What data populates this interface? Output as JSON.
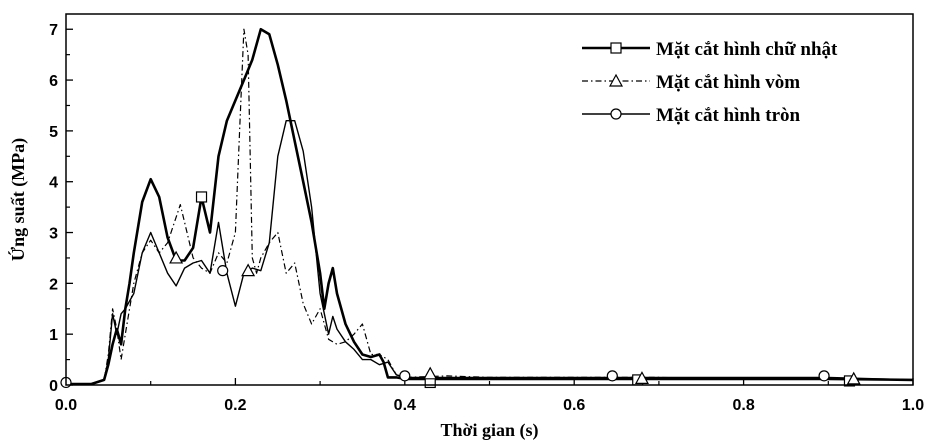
{
  "chart_data": {
    "type": "line",
    "xlabel": "Thời gian (s)",
    "ylabel": "Ứng suất (MPa)",
    "xlim": [
      0.0,
      1.0
    ],
    "ylim": [
      0,
      7.3
    ],
    "x_ticks": [
      "0.0",
      "0.2",
      "0.4",
      "0.6",
      "0.8",
      "1.0"
    ],
    "x_tick_values": [
      0.0,
      0.2,
      0.4,
      0.6,
      0.8,
      1.0
    ],
    "y_ticks": [
      "0",
      "1",
      "2",
      "3",
      "4",
      "5",
      "6",
      "7"
    ],
    "y_tick_values": [
      0,
      1,
      2,
      3,
      4,
      5,
      6,
      7
    ],
    "grid": false,
    "legend_position": "top-right",
    "series": [
      {
        "name": "Mặt cắt hình chữ nhật",
        "line_style": "solid-thick",
        "marker": "square",
        "color": "#000000",
        "x": [
          0.0,
          0.03,
          0.045,
          0.05,
          0.055,
          0.06,
          0.065,
          0.07,
          0.075,
          0.08,
          0.09,
          0.1,
          0.11,
          0.12,
          0.13,
          0.14,
          0.15,
          0.16,
          0.17,
          0.18,
          0.19,
          0.2,
          0.21,
          0.22,
          0.23,
          0.24,
          0.25,
          0.26,
          0.27,
          0.28,
          0.29,
          0.3,
          0.305,
          0.31,
          0.315,
          0.32,
          0.33,
          0.34,
          0.35,
          0.36,
          0.37,
          0.375,
          0.38,
          0.39,
          0.4,
          0.45,
          0.5,
          0.6,
          0.7,
          0.8,
          0.9,
          1.0
        ],
        "y": [
          0.02,
          0.02,
          0.1,
          0.4,
          0.8,
          1.1,
          0.8,
          1.5,
          2.0,
          2.6,
          3.6,
          4.05,
          3.7,
          2.9,
          2.45,
          2.45,
          2.7,
          3.7,
          3.0,
          4.5,
          5.2,
          5.6,
          6.0,
          6.4,
          7.0,
          6.9,
          6.3,
          5.6,
          4.8,
          4.0,
          3.2,
          2.2,
          1.5,
          2.0,
          2.3,
          1.8,
          1.2,
          0.85,
          0.6,
          0.55,
          0.6,
          0.45,
          0.15,
          0.15,
          0.12,
          0.12,
          0.12,
          0.12,
          0.12,
          0.12,
          0.12,
          0.1
        ]
      },
      {
        "name": "Mặt cắt hình vòm",
        "line_style": "dash-dot",
        "marker": "triangle",
        "color": "#000000",
        "x": [
          0.0,
          0.03,
          0.045,
          0.05,
          0.055,
          0.06,
          0.065,
          0.07,
          0.08,
          0.09,
          0.1,
          0.11,
          0.12,
          0.13,
          0.135,
          0.14,
          0.15,
          0.16,
          0.17,
          0.18,
          0.19,
          0.2,
          0.205,
          0.21,
          0.215,
          0.22,
          0.225,
          0.23,
          0.24,
          0.25,
          0.26,
          0.27,
          0.28,
          0.29,
          0.3,
          0.31,
          0.32,
          0.33,
          0.34,
          0.35,
          0.36,
          0.37,
          0.38,
          0.39,
          0.4,
          0.45,
          0.5,
          0.6,
          0.7,
          0.8,
          0.9,
          1.0
        ],
        "y": [
          0.02,
          0.02,
          0.1,
          0.6,
          1.5,
          1.1,
          0.5,
          1.0,
          2.0,
          2.6,
          2.85,
          2.6,
          2.8,
          3.3,
          3.55,
          3.2,
          2.5,
          2.3,
          2.2,
          2.6,
          2.4,
          3.0,
          5.0,
          7.0,
          6.5,
          2.5,
          2.2,
          2.5,
          2.8,
          3.0,
          2.2,
          2.4,
          1.6,
          1.2,
          1.5,
          0.9,
          0.8,
          0.85,
          1.0,
          1.2,
          0.6,
          0.6,
          0.5,
          0.2,
          0.15,
          0.18,
          0.15,
          0.15,
          0.15,
          0.12,
          0.12,
          0.1
        ]
      },
      {
        "name": "Mặt cắt hình tròn",
        "line_style": "solid-thin",
        "marker": "circle",
        "color": "#000000",
        "x": [
          0.0,
          0.03,
          0.045,
          0.05,
          0.055,
          0.06,
          0.065,
          0.07,
          0.08,
          0.09,
          0.1,
          0.11,
          0.12,
          0.13,
          0.14,
          0.15,
          0.16,
          0.17,
          0.18,
          0.19,
          0.2,
          0.21,
          0.22,
          0.23,
          0.24,
          0.25,
          0.26,
          0.27,
          0.28,
          0.29,
          0.3,
          0.31,
          0.315,
          0.32,
          0.33,
          0.34,
          0.35,
          0.36,
          0.37,
          0.38,
          0.39,
          0.4,
          0.5,
          0.6,
          0.7,
          0.8,
          0.9,
          1.0
        ],
        "y": [
          0.02,
          0.02,
          0.1,
          0.5,
          1.4,
          1.0,
          1.4,
          1.5,
          1.8,
          2.6,
          3.0,
          2.6,
          2.2,
          1.95,
          2.3,
          2.4,
          2.45,
          2.2,
          3.2,
          2.2,
          1.55,
          2.2,
          2.3,
          2.25,
          2.8,
          4.5,
          5.2,
          5.2,
          4.6,
          3.5,
          1.8,
          1.0,
          1.35,
          1.1,
          0.85,
          0.7,
          0.5,
          0.5,
          0.4,
          0.45,
          0.2,
          0.15,
          0.15,
          0.15,
          0.15,
          0.15,
          0.15,
          0.1
        ]
      }
    ],
    "markers": {
      "square": [
        [
          0.16,
          3.7
        ],
        [
          0.43,
          0.05
        ],
        [
          0.675,
          0.1
        ],
        [
          0.925,
          0.08
        ]
      ],
      "triangle": [
        [
          0.13,
          2.5
        ],
        [
          0.215,
          2.25
        ],
        [
          0.43,
          0.22
        ],
        [
          0.68,
          0.13
        ],
        [
          0.93,
          0.12
        ]
      ],
      "circle": [
        [
          0.0,
          0.05
        ],
        [
          0.185,
          2.25
        ],
        [
          0.4,
          0.18
        ],
        [
          0.645,
          0.18
        ],
        [
          0.895,
          0.18
        ]
      ]
    }
  }
}
